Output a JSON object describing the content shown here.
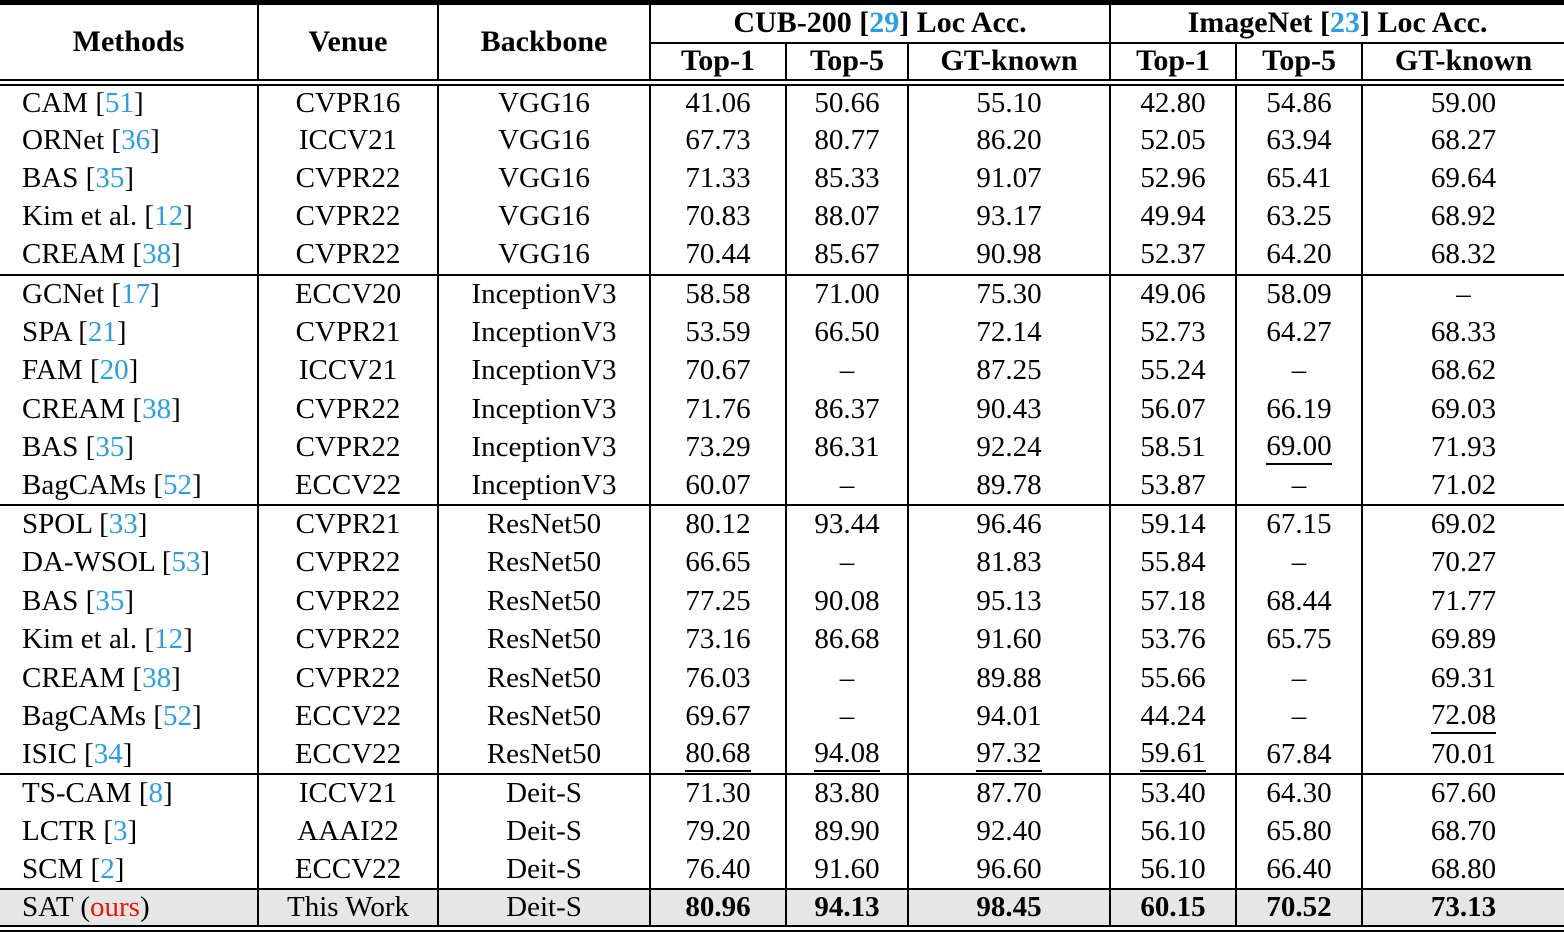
{
  "colors": {
    "cite": "#2b9fe5",
    "ours": "#ed1409",
    "highlight": "#e6e6e6"
  },
  "table": {
    "ours_label": "ours",
    "header": {
      "methods": "Methods",
      "venue": "Venue",
      "backbone": "Backbone",
      "cub": {
        "pre": "CUB-200 [",
        "cite": "29",
        "post": "] Loc Acc."
      },
      "imagenet": {
        "pre": "ImageNet [",
        "cite": "23",
        "post": "] Loc Acc."
      },
      "sub": [
        "Top-1",
        "Top-5",
        "GT-known",
        "Top-1",
        "Top-5",
        "GT-known"
      ]
    },
    "rows": [
      {
        "method": "CAM",
        "cite": "51",
        "venue": "CVPR16",
        "backbone": "VGG16",
        "values": [
          "41.06",
          "50.66",
          "55.10",
          "42.80",
          "54.86",
          "59.00"
        ]
      },
      {
        "method": "ORNet",
        "cite": "36",
        "venue": "ICCV21",
        "backbone": "VGG16",
        "values": [
          "67.73",
          "80.77",
          "86.20",
          "52.05",
          "63.94",
          "68.27"
        ]
      },
      {
        "method": "BAS",
        "cite": "35",
        "venue": "CVPR22",
        "backbone": "VGG16",
        "values": [
          "71.33",
          "85.33",
          "91.07",
          "52.96",
          "65.41",
          "69.64"
        ]
      },
      {
        "method": "Kim et al.",
        "cite": "12",
        "venue": "CVPR22",
        "backbone": "VGG16",
        "values": [
          "70.83",
          "88.07",
          "93.17",
          "49.94",
          "63.25",
          "68.92"
        ]
      },
      {
        "method": "CREAM",
        "cite": "38",
        "venue": "CVPR22",
        "backbone": "VGG16",
        "values": [
          "70.44",
          "85.67",
          "90.98",
          "52.37",
          "64.20",
          "68.32"
        ],
        "rule_after": true
      },
      {
        "method": "GCNet",
        "cite": "17",
        "venue": "ECCV20",
        "backbone": "InceptionV3",
        "values": [
          "58.58",
          "71.00",
          "75.30",
          "49.06",
          "58.09",
          "–"
        ]
      },
      {
        "method": "SPA",
        "cite": "21",
        "venue": "CVPR21",
        "backbone": "InceptionV3",
        "values": [
          "53.59",
          "66.50",
          "72.14",
          "52.73",
          "64.27",
          "68.33"
        ]
      },
      {
        "method": "FAM",
        "cite": "20",
        "venue": "ICCV21",
        "backbone": "InceptionV3",
        "values": [
          "70.67",
          "–",
          "87.25",
          "55.24",
          "–",
          "68.62"
        ]
      },
      {
        "method": "CREAM",
        "cite": "38",
        "venue": "CVPR22",
        "backbone": "InceptionV3",
        "values": [
          "71.76",
          "86.37",
          "90.43",
          "56.07",
          "66.19",
          "69.03"
        ]
      },
      {
        "method": "BAS",
        "cite": "35",
        "venue": "CVPR22",
        "backbone": "InceptionV3",
        "values": [
          "73.29",
          "86.31",
          "92.24",
          "58.51",
          "69.00",
          "71.93"
        ],
        "underline": [
          4
        ]
      },
      {
        "method": "BagCAMs",
        "cite": "52",
        "venue": "ECCV22",
        "backbone": "InceptionV3",
        "values": [
          "60.07",
          "–",
          "89.78",
          "53.87",
          "–",
          "71.02"
        ],
        "rule_after": true
      },
      {
        "method": "SPOL",
        "cite": "33",
        "venue": "CVPR21",
        "backbone": "ResNet50",
        "values": [
          "80.12",
          "93.44",
          "96.46",
          "59.14",
          "67.15",
          "69.02"
        ]
      },
      {
        "method": "DA-WSOL",
        "cite": "53",
        "venue": "CVPR22",
        "backbone": "ResNet50",
        "values": [
          "66.65",
          "–",
          "81.83",
          "55.84",
          "–",
          "70.27"
        ]
      },
      {
        "method": "BAS",
        "cite": "35",
        "venue": "CVPR22",
        "backbone": "ResNet50",
        "values": [
          "77.25",
          "90.08",
          "95.13",
          "57.18",
          "68.44",
          "71.77"
        ]
      },
      {
        "method": "Kim et al.",
        "cite": "12",
        "venue": "CVPR22",
        "backbone": "ResNet50",
        "values": [
          "73.16",
          "86.68",
          "91.60",
          "53.76",
          "65.75",
          "69.89"
        ]
      },
      {
        "method": "CREAM",
        "cite": "38",
        "venue": "CVPR22",
        "backbone": "ResNet50",
        "values": [
          "76.03",
          "–",
          "89.88",
          "55.66",
          "–",
          "69.31"
        ]
      },
      {
        "method": "BagCAMs",
        "cite": "52",
        "venue": "ECCV22",
        "backbone": "ResNet50",
        "values": [
          "69.67",
          "–",
          "94.01",
          "44.24",
          "–",
          "72.08"
        ],
        "underline": [
          5
        ]
      },
      {
        "method": "ISIC",
        "cite": "34",
        "venue": "ECCV22",
        "backbone": "ResNet50",
        "values": [
          "80.68",
          "94.08",
          "97.32",
          "59.61",
          "67.84",
          "70.01"
        ],
        "underline": [
          0,
          1,
          2,
          3
        ],
        "rule_after": true
      },
      {
        "method": "TS-CAM",
        "cite": "8",
        "venue": "ICCV21",
        "backbone": "Deit-S",
        "values": [
          "71.30",
          "83.80",
          "87.70",
          "53.40",
          "64.30",
          "67.60"
        ]
      },
      {
        "method": "LCTR",
        "cite": "3",
        "venue": "AAAI22",
        "backbone": "Deit-S",
        "values": [
          "79.20",
          "89.90",
          "92.40",
          "56.10",
          "65.80",
          "68.70"
        ]
      },
      {
        "method": "SCM",
        "cite": "2",
        "venue": "ECCV22",
        "backbone": "Deit-S",
        "values": [
          "76.40",
          "91.60",
          "96.60",
          "56.10",
          "66.40",
          "68.80"
        ],
        "rule_after": true
      },
      {
        "method": "SAT",
        "ours": true,
        "venue": "This Work",
        "backbone": "Deit-S",
        "values": [
          "80.96",
          "94.13",
          "98.45",
          "60.15",
          "70.52",
          "73.13"
        ],
        "bold": true,
        "highlight": true
      }
    ]
  }
}
